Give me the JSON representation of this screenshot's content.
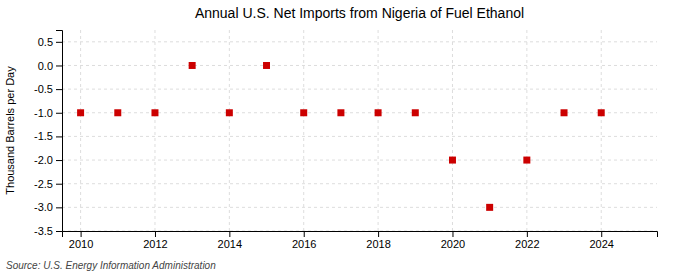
{
  "chart_data": {
    "type": "scatter",
    "title": "Annual U.S. Net Imports from Nigeria of Fuel Ethanol",
    "ylabel": "Thousand Barrels per Day",
    "source": "Source: U.S. Energy Information Administration",
    "x": [
      2010,
      2011,
      2012,
      2013,
      2014,
      2015,
      2016,
      2017,
      2018,
      2019,
      2020,
      2021,
      2022,
      2023,
      2024
    ],
    "values": [
      -1,
      -1,
      -1,
      0,
      -1,
      0,
      -1,
      -1,
      -1,
      -1,
      -2,
      -3,
      -2,
      -1,
      -1
    ],
    "color": "#cc0000",
    "marker": "square",
    "xlim": [
      2009.5,
      2025.5
    ],
    "ylim": [
      -3.5,
      0.75
    ],
    "xticks": [
      2010,
      2012,
      2014,
      2016,
      2018,
      2020,
      2022,
      2024
    ],
    "yticks": [
      0.5,
      {
        "value": 0.0,
        "label": "0.0"
      },
      -0.5,
      {
        "value": -1.0,
        "label": "-1.0"
      },
      -1.5,
      {
        "value": -2.0,
        "label": "-2.0"
      },
      -2.5,
      {
        "value": -3.0,
        "label": "-3.0"
      },
      -3.5
    ],
    "grid": true
  }
}
